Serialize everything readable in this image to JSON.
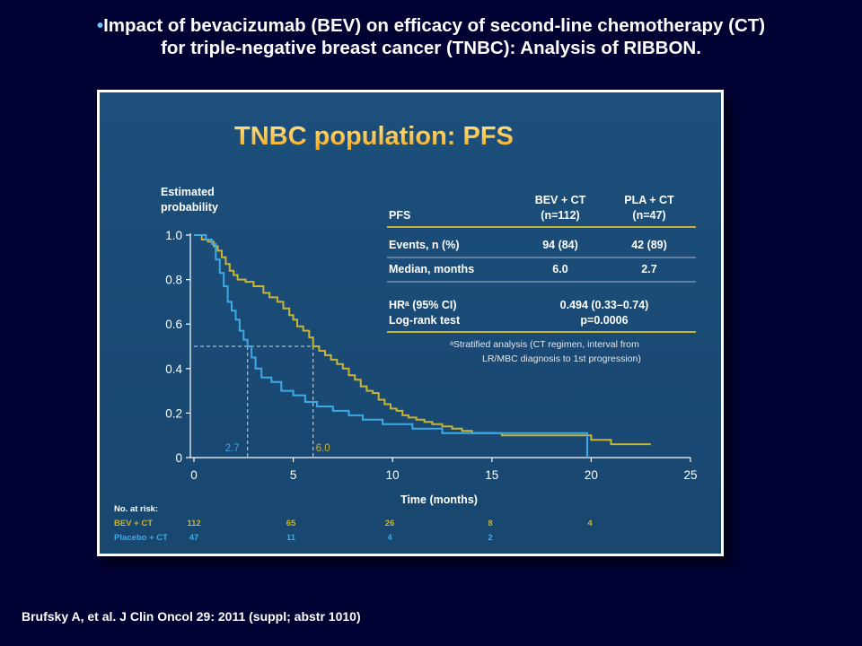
{
  "slide": {
    "bullet": "•",
    "title_line1": "Impact of bevacizumab (BEV) on efficacy of second-line chemotherapy (CT)",
    "title_line2": "for triple-negative breast cancer (TNBC): Analysis of RIBBON.",
    "citation": "Brufsky A, et al. J Clin Oncol 29: 2011 (suppl; abstr 1010)"
  },
  "colors": {
    "background": "#000033",
    "panel": "#1c4f7c",
    "title_accent": "#ffc72c",
    "bev": "#c8b436",
    "placebo": "#3fa9e6",
    "axis": "#ffffff",
    "reference": "#d0d6de"
  },
  "table": {
    "header": [
      "PFS",
      "BEV + CT\n(n=112)",
      "PLA + CT\n(n=47)"
    ],
    "rows": [
      {
        "label": "Events, n (%)",
        "bev": "94 (84)",
        "pla": "42 (89)"
      },
      {
        "label": "Median, months",
        "bev": "6.0",
        "pla": "2.7"
      }
    ],
    "hr_label": "HRᵃ (95% CI)",
    "hr_value": "0.494 (0.33–0.74)",
    "logrank_label": "Log-rank test",
    "logrank_value": "p=0.0006",
    "footnote_line1": "ᵃStratified analysis (CT regimen, interval from",
    "footnote_line2": "LR/MBC diagnosis to 1st progression)"
  },
  "risk_table": {
    "title": "No. at risk:",
    "rows": [
      {
        "label": "BEV + CT",
        "values": [
          "112",
          "65",
          "26",
          "8",
          "4"
        ]
      },
      {
        "label": "Placebo + CT",
        "values": [
          "47",
          "11",
          "4",
          "2",
          ""
        ]
      }
    ]
  },
  "chart_data": {
    "type": "line",
    "title": "TNBC population: PFS",
    "xlabel": "Time (months)",
    "ylabel": "Estimated\nprobability",
    "xlim": [
      0,
      25
    ],
    "ylim": [
      0,
      1.0
    ],
    "xticks": [
      0,
      5,
      10,
      15,
      20,
      25
    ],
    "yticks": [
      0,
      0.2,
      0.4,
      0.6,
      0.8,
      1.0
    ],
    "ytick_labels": [
      "0",
      "0.2",
      "0.4",
      "0.6",
      "0.8",
      "1.0"
    ],
    "step": true,
    "grid": false,
    "series": [
      {
        "name": "BEV + CT",
        "color": "#c8b436",
        "x": [
          0,
          0.4,
          0.7,
          1.0,
          1.2,
          1.4,
          1.6,
          1.8,
          2.0,
          2.2,
          2.6,
          3.0,
          3.5,
          3.8,
          4.2,
          4.5,
          4.8,
          5.0,
          5.2,
          5.5,
          5.8,
          6.0,
          6.3,
          6.6,
          6.9,
          7.2,
          7.5,
          7.8,
          8.1,
          8.4,
          8.7,
          9.0,
          9.3,
          9.6,
          9.9,
          10.2,
          10.5,
          10.8,
          11.2,
          11.6,
          12.0,
          12.5,
          13.0,
          13.5,
          14.0,
          14.8,
          15.5,
          17.0,
          19.0,
          20.0,
          21.0,
          23.0
        ],
        "y": [
          1.0,
          0.98,
          0.97,
          0.95,
          0.93,
          0.9,
          0.87,
          0.84,
          0.82,
          0.8,
          0.79,
          0.77,
          0.74,
          0.72,
          0.7,
          0.67,
          0.64,
          0.62,
          0.59,
          0.57,
          0.54,
          0.5,
          0.48,
          0.46,
          0.44,
          0.42,
          0.4,
          0.37,
          0.35,
          0.32,
          0.3,
          0.29,
          0.26,
          0.24,
          0.22,
          0.21,
          0.19,
          0.18,
          0.17,
          0.16,
          0.15,
          0.14,
          0.13,
          0.12,
          0.11,
          0.11,
          0.1,
          0.1,
          0.1,
          0.08,
          0.06,
          0.06
        ]
      },
      {
        "name": "Placebo + CT",
        "color": "#3fa9e6",
        "x": [
          0,
          0.6,
          0.9,
          1.1,
          1.3,
          1.5,
          1.7,
          1.9,
          2.1,
          2.3,
          2.5,
          2.7,
          2.9,
          3.1,
          3.4,
          3.9,
          4.4,
          5.0,
          5.6,
          6.2,
          7.0,
          7.8,
          8.5,
          9.5,
          11.0,
          12.5,
          14.5,
          16.0,
          18.0,
          19.8
        ],
        "y": [
          1.0,
          0.98,
          0.96,
          0.89,
          0.83,
          0.77,
          0.7,
          0.66,
          0.62,
          0.57,
          0.53,
          0.5,
          0.45,
          0.4,
          0.36,
          0.34,
          0.3,
          0.28,
          0.25,
          0.23,
          0.21,
          0.19,
          0.17,
          0.15,
          0.13,
          0.11,
          0.11,
          0.11,
          0.11,
          0.0
        ]
      }
    ],
    "medians": [
      {
        "series": "Placebo + CT",
        "x": 2.7,
        "label": "2.7",
        "color": "#3fa9e6"
      },
      {
        "series": "BEV + CT",
        "x": 6.0,
        "label": "6.0",
        "color": "#c8b436"
      }
    ],
    "reference_y": 0.5
  }
}
